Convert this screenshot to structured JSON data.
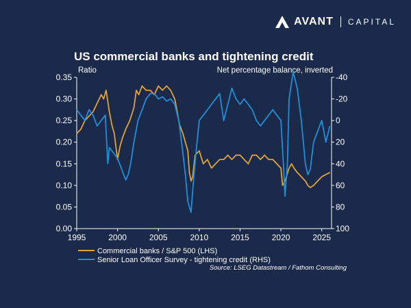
{
  "brand": {
    "name": "AVANT",
    "sub": "CAPITAL",
    "accent": "#ffffff"
  },
  "chart_data": {
    "type": "line",
    "title": "US commercial banks and tightening credit",
    "ylabel_left": "Ratio",
    "ylabel_right": "Net percentage balance, inverted",
    "xlim": [
      1995,
      2026.2
    ],
    "ylim_left": [
      0,
      0.35
    ],
    "ylim_right": [
      100,
      -40
    ],
    "right_axis_inverted": true,
    "x_ticks": [
      1995,
      2000,
      2005,
      2010,
      2015,
      2020,
      2025
    ],
    "x_tick_labels": [
      "1995",
      "2000",
      "2005",
      "2010",
      "2015",
      "2020",
      "2025"
    ],
    "y_ticks_left": [
      0.0,
      0.05,
      0.1,
      0.15,
      0.2,
      0.25,
      0.3,
      0.35
    ],
    "y_tick_labels_left": [
      "0.00",
      "0.05",
      "0.10",
      "0.15",
      "0.20",
      "0.25",
      "0.30",
      "0.35"
    ],
    "y_ticks_right": [
      -40,
      -20,
      0,
      20,
      40,
      60,
      80,
      100
    ],
    "y_tick_labels_right": [
      "-40",
      "-20",
      "0",
      "20",
      "40",
      "60",
      "80",
      "100"
    ],
    "grid": false,
    "legend_position": "bottom-left",
    "series": [
      {
        "name": "Commercial banks / S&P 500 (LHS)",
        "axis": "left",
        "color": "#e0a33a",
        "x": [
          1995.0,
          1995.5,
          1996.0,
          1996.5,
          1997.0,
          1997.5,
          1998.0,
          1998.3,
          1998.6,
          1999.0,
          1999.3,
          1999.6,
          2000.0,
          2000.3,
          2000.6,
          2001.0,
          2001.5,
          2002.0,
          2002.3,
          2002.6,
          2003.0,
          2003.5,
          2004.0,
          2004.5,
          2005.0,
          2005.5,
          2006.0,
          2006.5,
          2007.0,
          2007.3,
          2007.6,
          2008.0,
          2008.3,
          2008.6,
          2008.8,
          2009.0,
          2009.2,
          2009.5,
          2010.0,
          2010.5,
          2011.0,
          2011.5,
          2012.0,
          2012.5,
          2013.0,
          2013.5,
          2014.0,
          2014.5,
          2015.0,
          2015.5,
          2016.0,
          2016.5,
          2017.0,
          2017.5,
          2018.0,
          2018.5,
          2019.0,
          2019.5,
          2020.0,
          2020.2,
          2020.5,
          2021.0,
          2021.3,
          2021.6,
          2022.0,
          2022.5,
          2023.0,
          2023.3,
          2023.6,
          2024.0,
          2024.5,
          2025.0,
          2025.5,
          2026.0
        ],
        "y": [
          0.22,
          0.23,
          0.25,
          0.26,
          0.27,
          0.29,
          0.31,
          0.3,
          0.32,
          0.27,
          0.24,
          0.22,
          0.16,
          0.19,
          0.21,
          0.23,
          0.25,
          0.28,
          0.32,
          0.31,
          0.33,
          0.32,
          0.32,
          0.31,
          0.33,
          0.32,
          0.33,
          0.32,
          0.3,
          0.27,
          0.24,
          0.22,
          0.2,
          0.18,
          0.13,
          0.11,
          0.12,
          0.17,
          0.18,
          0.15,
          0.16,
          0.14,
          0.15,
          0.16,
          0.16,
          0.17,
          0.16,
          0.17,
          0.17,
          0.16,
          0.15,
          0.17,
          0.17,
          0.16,
          0.17,
          0.16,
          0.16,
          0.15,
          0.14,
          0.1,
          0.11,
          0.14,
          0.15,
          0.14,
          0.13,
          0.12,
          0.11,
          0.1,
          0.095,
          0.1,
          0.11,
          0.12,
          0.125,
          0.13
        ]
      },
      {
        "name": "Senior Loan Officer Survey - tightening credit (RHS)",
        "axis": "right",
        "color": "#1f8fd8",
        "x": [
          1995.0,
          1995.5,
          1996.0,
          1996.5,
          1997.0,
          1997.5,
          1998.0,
          1998.5,
          1998.8,
          1999.0,
          1999.5,
          2000.0,
          2000.5,
          2001.0,
          2001.3,
          2001.6,
          2002.0,
          2002.5,
          2003.0,
          2003.5,
          2004.0,
          2004.5,
          2005.0,
          2005.5,
          2006.0,
          2006.5,
          2007.0,
          2007.5,
          2008.0,
          2008.3,
          2008.6,
          2009.0,
          2009.3,
          2009.6,
          2010.0,
          2010.5,
          2011.0,
          2011.5,
          2012.0,
          2012.5,
          2013.0,
          2013.5,
          2014.0,
          2014.5,
          2015.0,
          2015.5,
          2016.0,
          2016.5,
          2017.0,
          2017.5,
          2018.0,
          2018.5,
          2019.0,
          2019.5,
          2020.0,
          2020.3,
          2020.5,
          2020.8,
          2021.0,
          2021.5,
          2022.0,
          2022.5,
          2023.0,
          2023.3,
          2023.6,
          2024.0,
          2024.5,
          2025.0,
          2025.5,
          2026.0
        ],
        "y": [
          -10,
          -5,
          0,
          -10,
          -5,
          5,
          0,
          -5,
          40,
          25,
          30,
          35,
          45,
          55,
          50,
          40,
          20,
          0,
          -10,
          -20,
          -25,
          -25,
          -20,
          -22,
          -18,
          -20,
          -15,
          0,
          30,
          50,
          75,
          85,
          55,
          30,
          0,
          -5,
          -10,
          -15,
          -20,
          -25,
          0,
          -15,
          -30,
          -20,
          -15,
          -20,
          -15,
          -10,
          0,
          5,
          0,
          -5,
          -10,
          -5,
          0,
          40,
          70,
          40,
          -20,
          -45,
          -30,
          0,
          40,
          50,
          45,
          20,
          10,
          0,
          20,
          5
        ]
      }
    ],
    "source": "Source: LSEG Datastream / Fathom Consulting"
  }
}
